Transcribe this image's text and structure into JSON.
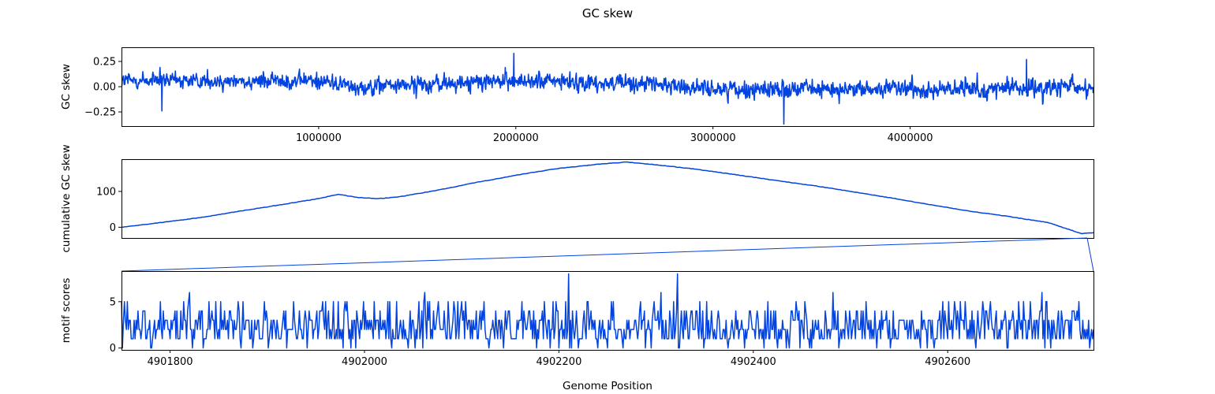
{
  "figure": {
    "title": "GC skew",
    "xlabel": "Genome Position"
  },
  "colors": {
    "line": "#0343df",
    "zoom": "#0343df",
    "axes": "#000000"
  },
  "chart_data": [
    {
      "type": "line",
      "ylabel": "GC skew",
      "xlim": [
        1,
        4930000
      ],
      "ylim": [
        -0.39,
        0.39
      ],
      "yticks": [
        -0.25,
        0.0,
        0.25
      ],
      "ytick_labels": [
        "−0.25",
        "0.00",
        "0.25"
      ],
      "xticks": [
        1000000,
        2000000,
        3000000,
        4000000
      ],
      "xtick_labels": [
        "1000000",
        "2000000",
        "3000000",
        "4000000"
      ],
      "xticks_position": "bottom",
      "grid": false,
      "trend": {
        "x": [
          0,
          1000000,
          1200000,
          2000000,
          2600000,
          3000000,
          4000000,
          4930000
        ],
        "y": [
          0.06,
          0.06,
          0.0,
          0.06,
          0.03,
          -0.02,
          -0.03,
          -0.01
        ]
      },
      "noise_amplitude": 0.07,
      "extremes": [
        {
          "x": 1990000,
          "y": 0.33
        },
        {
          "x": 3360000,
          "y": -0.37
        },
        {
          "x": 4590000,
          "y": 0.27
        },
        {
          "x": 205000,
          "y": -0.24
        }
      ]
    },
    {
      "type": "line",
      "ylabel": "cumulative GC skew",
      "xlim": [
        1,
        4930000
      ],
      "ylim": [
        -30,
        190
      ],
      "yticks": [
        0,
        100
      ],
      "ytick_labels": [
        "0",
        "100"
      ],
      "grid": false,
      "x": [
        0,
        200000,
        400000,
        600000,
        800000,
        1000000,
        1100000,
        1200000,
        1300000,
        1400000,
        1600000,
        1800000,
        2000000,
        2200000,
        2400000,
        2560000,
        2700000,
        2900000,
        3100000,
        3300000,
        3500000,
        3700000,
        3900000,
        4100000,
        4300000,
        4500000,
        4700000,
        4870000,
        4930000
      ],
      "y": [
        0,
        13,
        27,
        45,
        62,
        80,
        92,
        83,
        80,
        84,
        103,
        125,
        145,
        163,
        175,
        182,
        175,
        163,
        148,
        132,
        117,
        100,
        82,
        63,
        45,
        30,
        13,
        -18,
        -15
      ]
    },
    {
      "type": "line",
      "ylabel": "motif scores",
      "xlim": [
        4901750,
        4902750
      ],
      "ylim": [
        -0.2,
        8.3
      ],
      "yticks": [
        0,
        5
      ],
      "ytick_labels": [
        "0",
        "5"
      ],
      "xticks": [
        4901800,
        4902000,
        4902200,
        4902400,
        4902600
      ],
      "xtick_labels": [
        "4901800",
        "4902000",
        "4902200",
        "4902400",
        "4902600"
      ],
      "grid": false,
      "value_range": [
        0,
        8
      ],
      "typical_range": [
        1,
        4
      ],
      "peaks": [
        {
          "x": 4902210,
          "y": 8
        },
        {
          "x": 4902322,
          "y": 8
        },
        {
          "x": 4901820,
          "y": 6
        },
        {
          "x": 4902062,
          "y": 6
        },
        {
          "x": 4902305,
          "y": 6
        },
        {
          "x": 4902482,
          "y": 6
        },
        {
          "x": 4902697,
          "y": 6
        }
      ]
    }
  ]
}
